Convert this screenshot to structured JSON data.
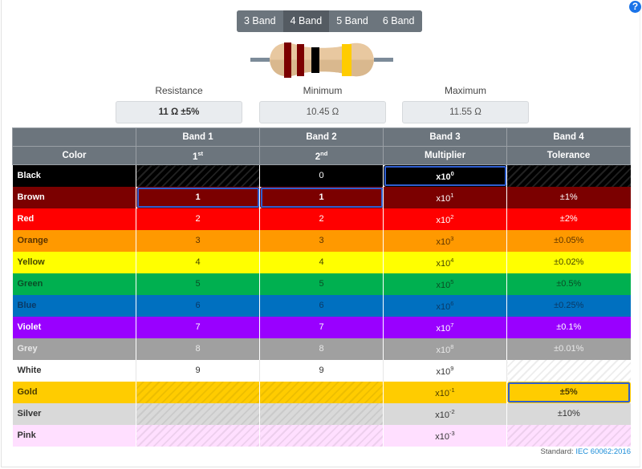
{
  "help": {
    "icon": "question-circle-icon",
    "label": "?"
  },
  "band_selector": {
    "options": [
      {
        "label": "3 Band",
        "active": false
      },
      {
        "label": "4 Band",
        "active": true
      },
      {
        "label": "5 Band",
        "active": false
      },
      {
        "label": "6 Band",
        "active": false
      }
    ]
  },
  "resistor": {
    "bands": [
      "#7b0000",
      "#7b0000",
      "#000000",
      "#ffcc00"
    ],
    "body_color": "#e8c8a0",
    "lead_color": "#7c8b99"
  },
  "summary": {
    "resistance_label": "Resistance",
    "resistance_value": "11 Ω ±5%",
    "minimum_label": "Minimum",
    "minimum_value": "10.45 Ω",
    "maximum_label": "Maximum",
    "maximum_value": "11.55 Ω"
  },
  "table": {
    "header_row1": [
      "",
      "Band 1",
      "Band 2",
      "Band 3",
      "Band 4"
    ],
    "header_row2": {
      "color": "Color",
      "band1": "1",
      "band1_sup": "st",
      "band2": "2",
      "band2_sup": "nd",
      "band3": "Multiplier",
      "band4": "Tolerance"
    },
    "rows": [
      {
        "name": "Black",
        "bg": "#000000",
        "fg": "#ffffff",
        "d1": null,
        "d2": "0",
        "mult": "x10",
        "exp": "0",
        "tol": null
      },
      {
        "name": "Brown",
        "bg": "#7b0000",
        "fg": "#ffffff",
        "d1": "1",
        "d2": "1",
        "mult": "x10",
        "exp": "1",
        "tol": "±1%"
      },
      {
        "name": "Red",
        "bg": "#ff0000",
        "fg": "#ffffff",
        "d1": "2",
        "d2": "2",
        "mult": "x10",
        "exp": "2",
        "tol": "±2%"
      },
      {
        "name": "Orange",
        "bg": "#ff9900",
        "fg": "#5a3300",
        "d1": "3",
        "d2": "3",
        "mult": "x10",
        "exp": "3",
        "tol": "±0.05%"
      },
      {
        "name": "Yellow",
        "bg": "#ffff00",
        "fg": "#444400",
        "d1": "4",
        "d2": "4",
        "mult": "x10",
        "exp": "4",
        "tol": "±0.02%"
      },
      {
        "name": "Green",
        "bg": "#00b050",
        "fg": "#0a4d26",
        "d1": "5",
        "d2": "5",
        "mult": "x10",
        "exp": "5",
        "tol": "±0.5%"
      },
      {
        "name": "Blue",
        "bg": "#0070c0",
        "fg": "#0a3a66",
        "d1": "6",
        "d2": "6",
        "mult": "x10",
        "exp": "6",
        "tol": "±0.25%"
      },
      {
        "name": "Violet",
        "bg": "#9900ff",
        "fg": "#ffffff",
        "d1": "7",
        "d2": "7",
        "mult": "x10",
        "exp": "7",
        "tol": "±0.1%"
      },
      {
        "name": "Grey",
        "bg": "#a0a0a0",
        "fg": "#e8e8e8",
        "d1": "8",
        "d2": "8",
        "mult": "x10",
        "exp": "8",
        "tol": "±0.01%"
      },
      {
        "name": "White",
        "bg": "#ffffff",
        "fg": "#333333",
        "d1": "9",
        "d2": "9",
        "mult": "x10",
        "exp": "9",
        "tol": null
      },
      {
        "name": "Gold",
        "bg": "#ffcc00",
        "fg": "#4a3b00",
        "d1": null,
        "d2": null,
        "mult": "x10",
        "exp": "-1",
        "tol": "±5%"
      },
      {
        "name": "Silver",
        "bg": "#d9d9d9",
        "fg": "#333333",
        "d1": null,
        "d2": null,
        "mult": "x10",
        "exp": "-2",
        "tol": "±10%"
      },
      {
        "name": "Pink",
        "bg": "#ffdfff",
        "fg": "#333333",
        "d1": null,
        "d2": null,
        "mult": "x10",
        "exp": "-3",
        "tol": null
      }
    ],
    "selected": {
      "band1": "Brown",
      "band2": "Brown",
      "band3": "Black",
      "band4": "Gold"
    }
  },
  "footer": {
    "label": "Standard:",
    "link": "IEC 60062:2016"
  },
  "colors": {
    "selection_outline": "#2f5fd0",
    "header_bg": "#6c757d",
    "link": "#1a8cd8"
  }
}
